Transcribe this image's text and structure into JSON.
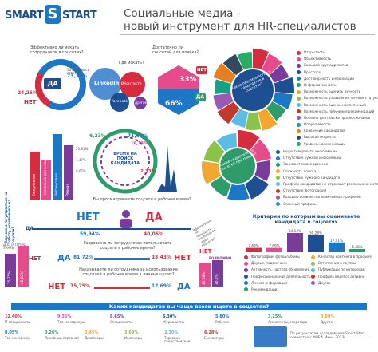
{
  "header": {
    "logo_left": "SMART",
    "logo_badge": "S",
    "logo_right": "START",
    "title_line1": "Социальные медиа -",
    "title_line2": "новый инструмент для HR-специалистов"
  },
  "q1": {
    "question": "Эффективно ли искать сотрудников в соцсетях?",
    "yes": "ДА",
    "no": "НЕТ",
    "yes_pct": "73,13%",
    "no_pct": "24,25%",
    "other_pct": "2,61%",
    "other_label": "Затрудняюсь ответить"
  },
  "q2": {
    "question": "Где искать?",
    "linkedin": "LinkedIn",
    "fb": "facebook",
    "vk": "ВКонтакте",
    "other": "Другие"
  },
  "q3": {
    "question": "Достаточно ли соцсетей для поиска?",
    "yes": "ДА",
    "no": "НЕТ",
    "pct_top": "33%",
    "pct_bottom": "66%"
  },
  "ring1": {
    "center": "Какие преимущества у кандидатов в соцсетях?",
    "items": [
      "Открытость",
      "Объективность",
      "Большой круг адресатов",
      "Простота",
      "Достоверность информации",
      "Информативность",
      "Возможность оценить личность",
      "Возможность управления личным статусом",
      "Возможность оценки компетенций",
      "Возможность получения рекомендаций",
      "Полезно для поиска профессионалов",
      "Оперативность",
      "Сравнение кандидатов",
      "Высокая скорость",
      "Уровень коммуникации"
    ]
  },
  "ring2": {
    "center": "Какие недостатки у соцсетей при поиске?",
    "items": [
      "Недостоверность информации",
      "Отсутствие нужной информации",
      "Занимает много времени",
      "Сложность поиска",
      "Отсутствие нужного кандидата",
      "Профили кандидатов не отражают реальных качеств",
      "Отсутствие фотографий",
      "Большое количество неактивных профилей",
      "Сложный профиль"
    ]
  },
  "bars_left": {
    "labels": [
      "Ежедневная",
      "Несколько раз в неделю",
      "Рейтинговая",
      "Редкая"
    ],
    "pcts": [
      "20,81%",
      "1,47%",
      "0,67%"
    ],
    "colors": [
      "#d62c3f",
      "#e64b8c",
      "#1d76c6",
      "#7a3c9a"
    ]
  },
  "clock": {
    "pct_top_left": "6,23%",
    "pct_top_right": "71,60%",
    "pct_right": "16,19%",
    "pct_bottom": "2,33%",
    "center": "ВРЕМЯ НА ПОИСК КАНДИДАТА"
  },
  "time_q": {
    "question": "Вы просматриваете соцсети в рабочее время?",
    "yes": "ДА",
    "no": "НЕТ",
    "yes_pct": "59,94%",
    "no_pct": "40,06%",
    "side_label": "Эффективно ли повышать кандидатов через соцсети?"
  },
  "pair1": {
    "question": "Разрешено ли сотрудникам использовать соцсети в рабочее время?",
    "yes": "ДА",
    "no": "НЕТ",
    "yes_pct": "81,72%",
    "no_pct": "13,43%"
  },
  "pair2": {
    "question": "Наказываете ли сотрудника за использование соцсетей в рабочее время в личных целях?",
    "yes": "ДА",
    "no": "НЕТ",
    "yes_pct": "12,69%",
    "no_pct": "75,75%"
  },
  "left_side": {
    "vertical_q": "Возможно ли устроиться на работу, основываясь на соцсети?",
    "yes": "ДА",
    "enough": "ДОСТАТОЧНО ЗНАТЬ",
    "no": "НЕТ",
    "pcts": [
      "25,75%",
      "28,82%"
    ]
  },
  "right_side": {
    "no": "НЕТ",
    "possible": "ВОЗМОЖНО",
    "pcts": [
      "48,66%",
      "30,2%"
    ]
  },
  "criteria": {
    "title": "Критерии по которым вы оцениваете кандидата в соцсетях",
    "bar_pcts": [
      "7,69%",
      "7,69%",
      "34,12%",
      "30,28%",
      "17,41%",
      "5,68%"
    ],
    "legend": [
      "Фотографии, фотоальбомы",
      "Друзья, подписчики",
      "Активность, частота обновлений",
      "Профессиональная деятельность",
      "Личная информация",
      "Рекомендации",
      "Качество контента в профиле",
      "Вступления в группы",
      "Публикации по интересам",
      "Профиль ведётся активно",
      "Другое"
    ]
  },
  "bottom": {
    "banner": "Каких кандидатов вы чаще всего ищете в соцсетях?",
    "top_pcts": [
      "12,40%",
      "9,35%",
      "8,65%",
      "6,30%",
      "5,80%",
      "3,25%",
      "3,80%"
    ],
    "top_labels": [
      "IT-специалисты",
      "Топ-менеджеры",
      "Специалисты",
      "Журналисты",
      "Рабочие",
      "Ассистенты, секретари",
      "Другое"
    ],
    "bottom_pcts": [
      "0,05%",
      "0,26%",
      "0,45%",
      "3,69%",
      "2,30%",
      "6,28%"
    ],
    "bottom_labels": [
      "Топ-менеджер",
      "Линейный персонал",
      "Дизайнеры",
      "Инженеры",
      "Торговые представители",
      "Бухгалтеры"
    ],
    "source": "По результатам исследования Smart Start совместно с ФЛЕЙ, Июнь 2013г."
  }
}
